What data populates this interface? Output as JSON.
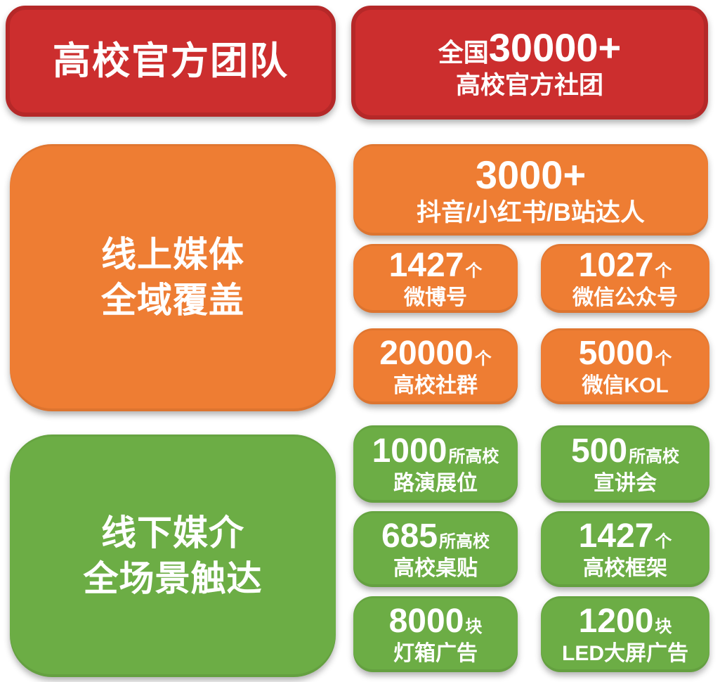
{
  "colors": {
    "red": "#cc2e2e",
    "orange": "#ee7d33",
    "green": "#6cad45",
    "text": "#ffffff"
  },
  "section_team": {
    "title": "高校官方团队",
    "stat": {
      "prefix": "全国",
      "value": "30000+",
      "label": "高校官方社团"
    }
  },
  "section_online": {
    "title_line1": "线上媒体",
    "title_line2": "全域覆盖",
    "featured": {
      "value": "3000+",
      "label": "抖音/小红书/B站达人"
    },
    "stats": [
      {
        "value": "1427",
        "unit": "个",
        "label": "微博号"
      },
      {
        "value": "1027",
        "unit": "个",
        "label": "微信公众号"
      },
      {
        "value": "20000",
        "unit": "个",
        "label": "高校社群"
      },
      {
        "value": "5000",
        "unit": "个",
        "label": "微信KOL"
      }
    ]
  },
  "section_offline": {
    "title_line1": "线下媒介",
    "title_line2": "全场景触达",
    "stats": [
      {
        "value": "1000",
        "unit": "所高校",
        "label": "路演展位"
      },
      {
        "value": "500",
        "unit": "所高校",
        "label": "宣讲会"
      },
      {
        "value": "685",
        "unit": "所高校",
        "label": "高校桌贴"
      },
      {
        "value": "1427",
        "unit": "个",
        "label": "高校框架"
      },
      {
        "value": "8000",
        "unit": "块",
        "label": "灯箱广告"
      },
      {
        "value": "1200",
        "unit": "块",
        "label": "LED大屏广告"
      }
    ]
  }
}
